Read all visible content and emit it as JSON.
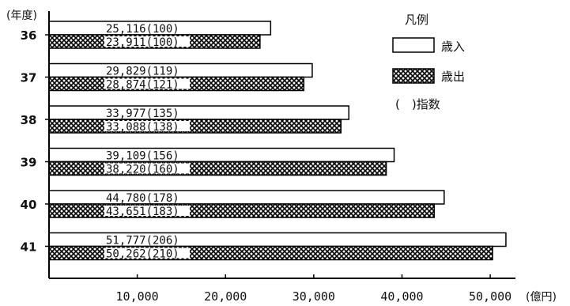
{
  "chart_data": {
    "type": "bar",
    "orientation": "horizontal",
    "categories": [
      "36",
      "37",
      "38",
      "39",
      "40",
      "41"
    ],
    "series": [
      {
        "name": "歳入",
        "values": [
          25116,
          29829,
          33977,
          39109,
          44780,
          51777
        ],
        "labels": [
          "25,116(100)",
          "29,829(119)",
          "33,977(135)",
          "39,109(156)",
          "44,780(178)",
          "51,777(206)"
        ]
      },
      {
        "name": "歳出",
        "values": [
          23911,
          28874,
          33088,
          38220,
          43651,
          50262
        ],
        "labels": [
          "23,911(100)",
          "28,874(121)",
          "33,088(138)",
          "38,220(160)",
          "43,651(183)",
          "50,262(210)"
        ]
      }
    ],
    "xticks": [
      "10,000",
      "20,000",
      "30,000",
      "40,000",
      "50,000"
    ],
    "xtick_values": [
      10000,
      20000,
      30000,
      40000,
      50000
    ],
    "xlim": [
      0,
      52500
    ],
    "xlabel": "(億円)",
    "ylabel": "(年度)",
    "legend": {
      "title": "凡例",
      "position": "top-right",
      "index_label": "(　)指数"
    },
    "grid": false
  }
}
